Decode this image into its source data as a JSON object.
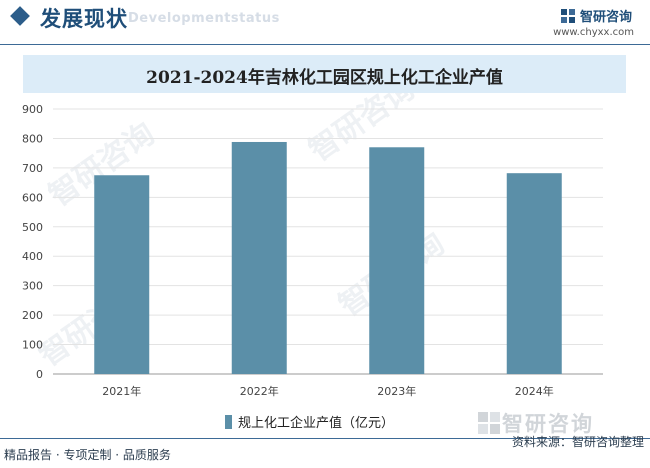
{
  "header": {
    "section_title": "发展现状",
    "section_subtitle": "Developmentstatus",
    "logo_text": "智研咨询",
    "site_url": "www.chyxx.com"
  },
  "chart_data": {
    "type": "bar",
    "title": "2021-2024年吉林化工园区规上化工企业产值",
    "categories": [
      "2021年",
      "2022年",
      "2023年",
      "2024年"
    ],
    "series": [
      {
        "name": "规上化工企业产值（亿元）",
        "values": [
          675,
          788,
          770,
          682
        ],
        "color": "#5b8fa8"
      }
    ],
    "ylim": [
      0,
      900
    ],
    "yticks": [
      0,
      100,
      200,
      300,
      400,
      500,
      600,
      700,
      800,
      900
    ],
    "grid": true,
    "legend_position": "bottom"
  },
  "watermark_logo_text": "智研咨询",
  "watermark_text": "智研咨询",
  "footer": {
    "left": "精品报告 · 专项定制 · 品质服务",
    "right": "资料来源：智研咨询整理"
  }
}
